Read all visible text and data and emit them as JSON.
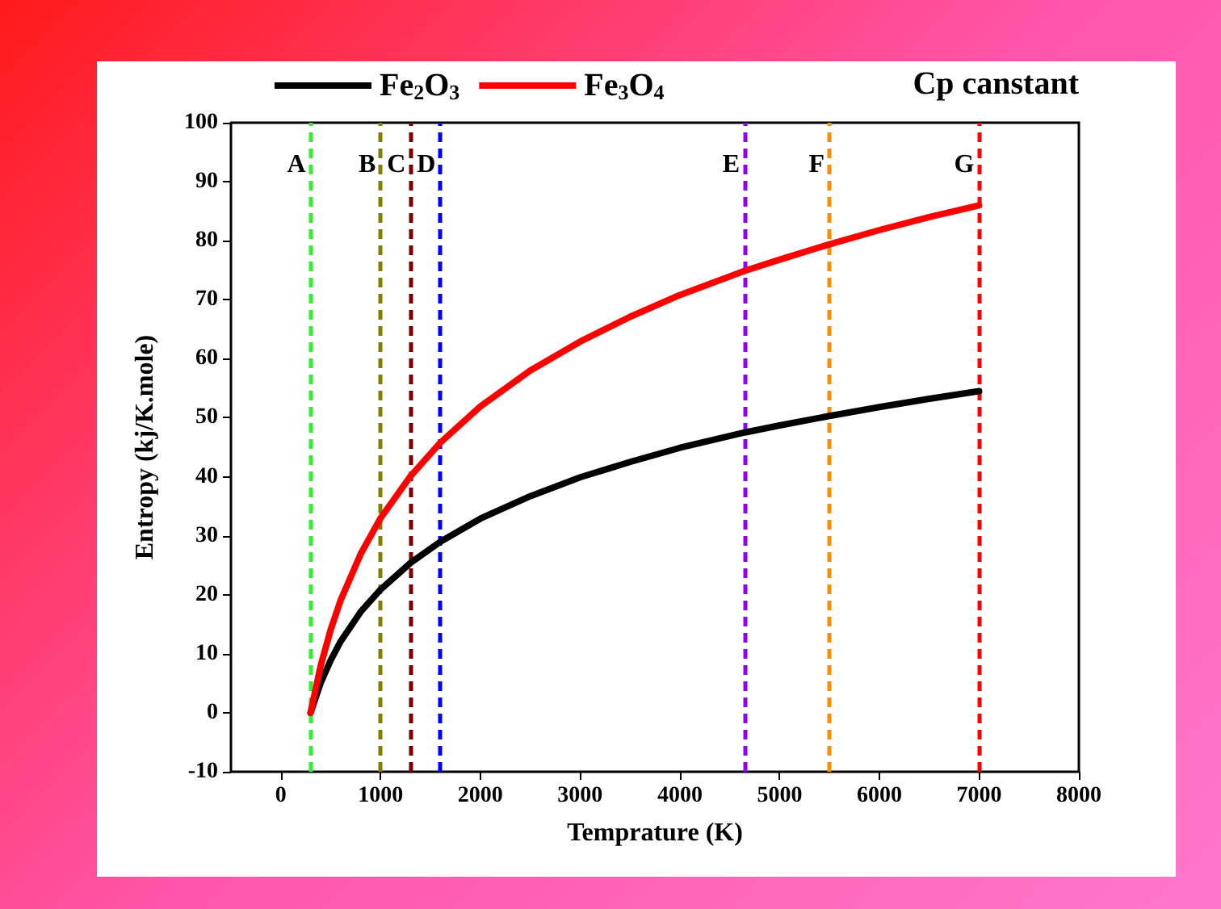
{
  "chart_data": {
    "type": "line",
    "xlabel": "Temprature (K)",
    "ylabel": "Entropy (kj/K.mole)",
    "x": [
      298,
      400,
      500,
      600,
      800,
      1000,
      1300,
      1600,
      2000,
      2500,
      3000,
      3500,
      4000,
      4650,
      5000,
      5500,
      6000,
      6500,
      7000
    ],
    "series": [
      {
        "name": "Fe$_{2}$O$_{3}$",
        "color": "#000000",
        "values": [
          0,
          5.1,
          8.9,
          12.1,
          17.1,
          20.9,
          25.4,
          29.0,
          32.9,
          36.7,
          39.9,
          42.5,
          44.9,
          47.5,
          48.7,
          50.3,
          51.8,
          53.2,
          54.5
        ]
      },
      {
        "name": "Fe$_{3}$O$_{4}$",
        "color": "#ff0000",
        "values": [
          0,
          8.0,
          14.1,
          19.1,
          26.9,
          33.0,
          40.1,
          45.8,
          51.9,
          58.0,
          62.9,
          67.1,
          70.8,
          74.9,
          76.8,
          79.4,
          81.8,
          84.0,
          86.0
        ]
      }
    ],
    "xlim": [
      -500,
      8000
    ],
    "xticks": [
      0,
      1000,
      2000,
      3000,
      4000,
      5000,
      6000,
      7000,
      8000
    ],
    "ylim": [
      -10,
      100
    ],
    "yticks": [
      -10,
      0,
      10,
      20,
      30,
      40,
      50,
      60,
      70,
      80,
      90,
      100
    ],
    "ref_lines": [
      {
        "axis": "x",
        "value": 298,
        "label": "A",
        "color": "#33ee33",
        "line_style": "dashed"
      },
      {
        "axis": "x",
        "value": 1000,
        "label": "B",
        "color": "#808000",
        "line_style": "dashed"
      },
      {
        "axis": "x",
        "value": 1300,
        "label": "C",
        "color": "#800000",
        "line_style": "dashed"
      },
      {
        "axis": "x",
        "value": 1600,
        "label": "D",
        "color": "#0000ff",
        "line_style": "dashed"
      },
      {
        "axis": "x",
        "value": 4650,
        "label": "E",
        "color": "#8b00ff",
        "line_style": "dashed"
      },
      {
        "axis": "x",
        "value": 5500,
        "label": "F",
        "color": "#ff8c00",
        "line_style": "dashed"
      },
      {
        "axis": "x",
        "value": 7000,
        "label": "G",
        "color": "#ff0000",
        "line_style": "dashed"
      }
    ],
    "annotations": [
      "Cp canstant"
    ],
    "grid": false,
    "legend": "top",
    "marker": "none",
    "line_style": "solid"
  }
}
